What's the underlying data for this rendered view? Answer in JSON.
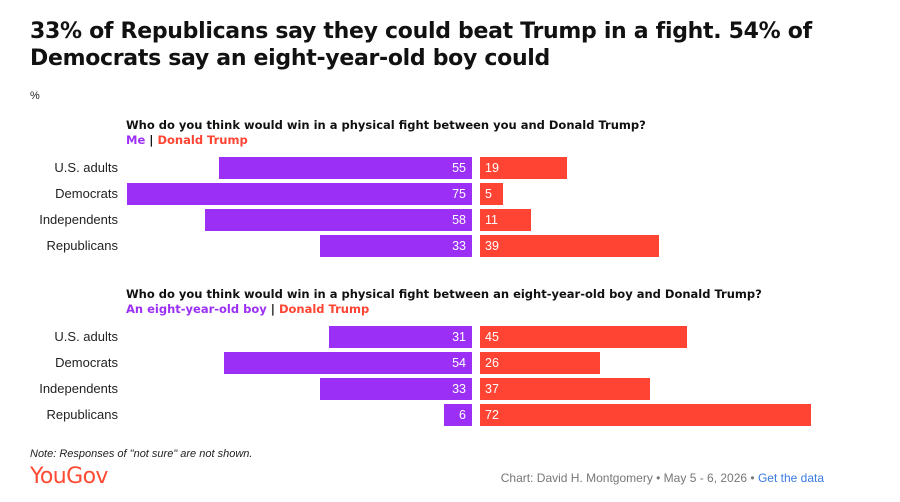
{
  "title": "33% of Republicans say they could beat Trump in a fight. 54% of Democrats say an eight-year-old boy could",
  "unit_label": "%",
  "note": "Note: Responses of \"not sure\" are not shown.",
  "logo_text": "YouGov",
  "credit": {
    "text": "Chart: David H. Montgomery • May 5 - 6, 2026 •",
    "link_label": "Get the data"
  },
  "colors": {
    "left_series": "#9b2ff5",
    "right_series": "#ff4433",
    "brand": "#ff4b33"
  },
  "chart_data": [
    {
      "type": "bar",
      "question": "Who do you think would win in a physical fight between you and Donald Trump?",
      "categories": [
        "U.S. adults",
        "Democrats",
        "Independents",
        "Republicans"
      ],
      "series": [
        {
          "name": "Me",
          "values": [
            55,
            75,
            58,
            33
          ]
        },
        {
          "name": "Donald Trump",
          "values": [
            19,
            5,
            11,
            39
          ]
        }
      ],
      "xlim": [
        0,
        100
      ]
    },
    {
      "type": "bar",
      "question": "Who do you think would win in a physical fight between an eight-year-old boy and Donald Trump?",
      "categories": [
        "U.S. adults",
        "Democrats",
        "Independents",
        "Republicans"
      ],
      "series": [
        {
          "name": "An eight-year-old boy",
          "values": [
            31,
            54,
            33,
            6
          ]
        },
        {
          "name": "Donald Trump",
          "values": [
            45,
            26,
            37,
            72
          ]
        }
      ],
      "xlim": [
        0,
        100
      ]
    }
  ]
}
